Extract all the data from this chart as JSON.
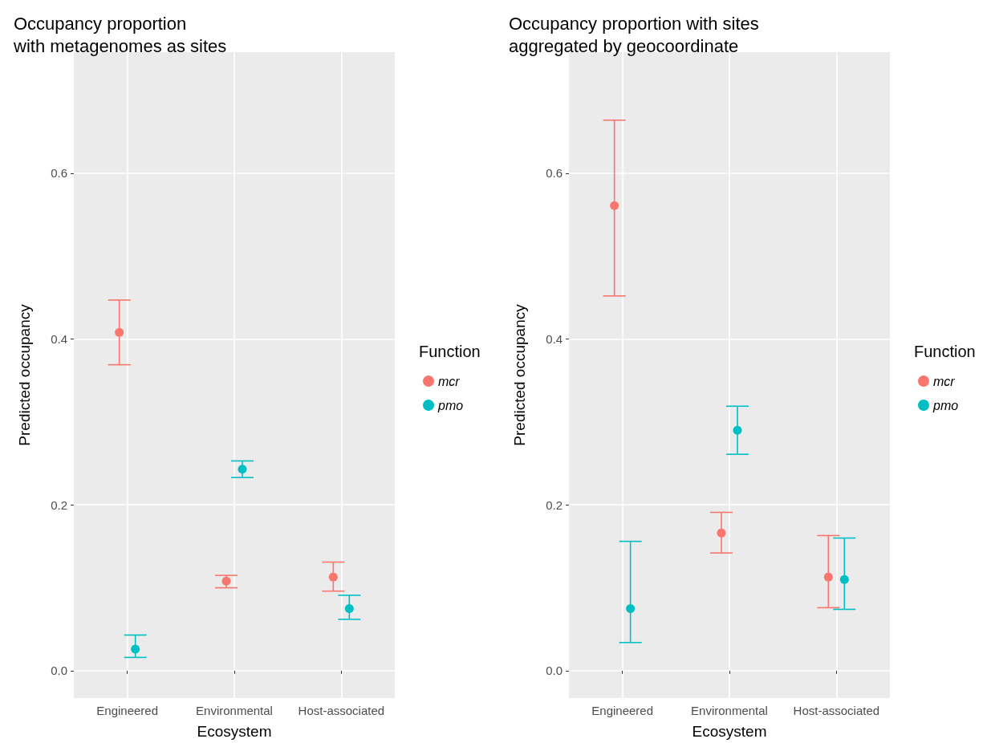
{
  "chart_data": [
    {
      "type": "scatter",
      "title": "Occupancy proportion\nwith metagenomes as sites",
      "xlabel": "Ecosystem",
      "ylabel": "Predicted occupancy",
      "legend_title": "Function",
      "categories": [
        "Engineered",
        "Environmental",
        "Host-associated"
      ],
      "series": [
        {
          "name": "mcr",
          "color": "#f8766d",
          "values": [
            0.408,
            0.108,
            0.113
          ],
          "errors": [
            [
              0.369,
              0.447
            ],
            [
              0.1,
              0.115
            ],
            [
              0.096,
              0.131
            ]
          ]
        },
        {
          "name": "pmo",
          "color": "#00bfc4",
          "values": [
            0.026,
            0.243,
            0.075
          ],
          "errors": [
            [
              0.016,
              0.043
            ],
            [
              0.233,
              0.253
            ],
            [
              0.062,
              0.091
            ]
          ]
        }
      ],
      "ylim": [
        -0.033,
        0.746
      ],
      "yticks": [
        {
          "value": 0,
          "label": "0.0"
        },
        {
          "value": 0.2,
          "label": "0.2"
        },
        {
          "value": 0.4,
          "label": "0.4"
        },
        {
          "value": 0.6,
          "label": "0.6"
        }
      ],
      "grid": true,
      "legend": "right",
      "marker": "circle"
    },
    {
      "type": "scatter",
      "title": "Occupancy proportion with sites\naggregated by geocoordinate",
      "xlabel": "Ecosystem",
      "ylabel": "Predicted occupancy",
      "legend_title": "Function",
      "categories": [
        "Engineered",
        "Environmental",
        "Host-associated"
      ],
      "series": [
        {
          "name": "mcr",
          "color": "#f8766d",
          "values": [
            0.561,
            0.166,
            0.113
          ],
          "errors": [
            [
              0.452,
              0.664
            ],
            [
              0.142,
              0.191
            ],
            [
              0.076,
              0.163
            ]
          ]
        },
        {
          "name": "pmo",
          "color": "#00bfc4",
          "values": [
            0.075,
            0.29,
            0.11
          ],
          "errors": [
            [
              0.034,
              0.156
            ],
            [
              0.261,
              0.319
            ],
            [
              0.074,
              0.16
            ]
          ]
        }
      ],
      "ylim": [
        -0.033,
        0.746
      ],
      "yticks": [
        {
          "value": 0,
          "label": "0.0"
        },
        {
          "value": 0.2,
          "label": "0.2"
        },
        {
          "value": 0.4,
          "label": "0.4"
        },
        {
          "value": 0.6,
          "label": "0.6"
        }
      ],
      "grid": true,
      "legend": "right",
      "marker": "circle"
    }
  ]
}
